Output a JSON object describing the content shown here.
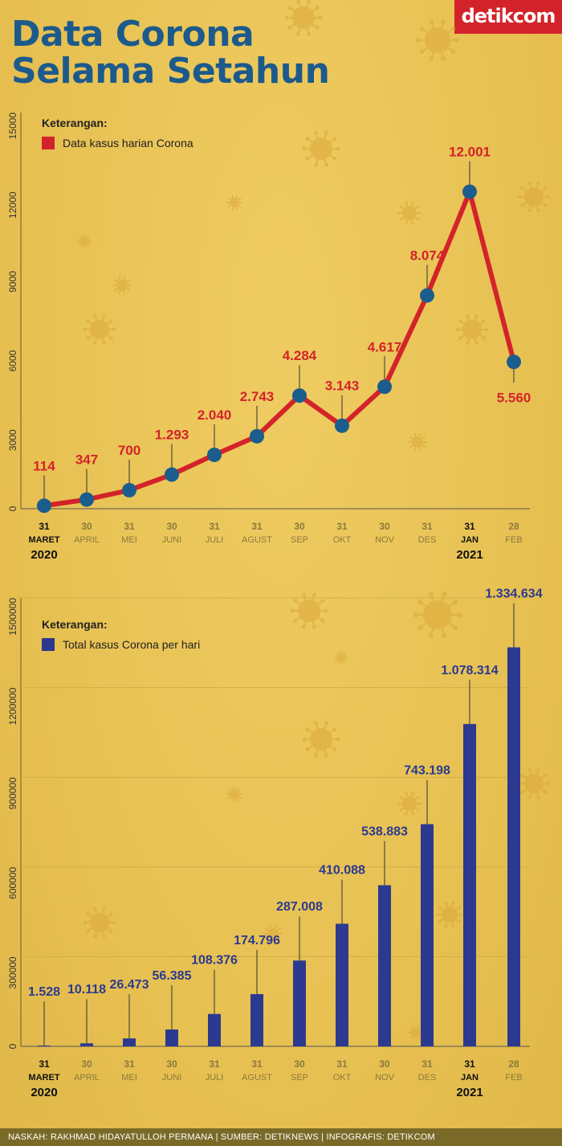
{
  "header": {
    "title_line1": "Data Corona",
    "title_line2": "Selama Setahun",
    "brand": "detikcom"
  },
  "footer": {
    "credits": "NASKAH: RAKHMAD HIDAYATULLOH PERMANA | SUMBER: DETIKNEWS | INFOGRAFIS: DETIKCOM"
  },
  "colors": {
    "title": "#1c5a8c",
    "daily_line": "#d3232a",
    "daily_marker": "#1b5d8c",
    "total_bar": "#2b3a8f",
    "brand": "#d3232a"
  },
  "chart_data": [
    {
      "type": "line",
      "legend_title": "Keterangan:",
      "legend_placement": "top-left",
      "categories": [
        {
          "day": "31",
          "month": "MARET"
        },
        {
          "day": "30",
          "month": "APRIL"
        },
        {
          "day": "31",
          "month": "MEI"
        },
        {
          "day": "30",
          "month": "JUNI"
        },
        {
          "day": "31",
          "month": "JULI"
        },
        {
          "day": "31",
          "month": "AGUST"
        },
        {
          "day": "30",
          "month": "SEP"
        },
        {
          "day": "31",
          "month": "OKT"
        },
        {
          "day": "30",
          "month": "NOV"
        },
        {
          "day": "31",
          "month": "DES"
        },
        {
          "day": "31",
          "month": "JAN"
        },
        {
          "day": "28",
          "month": "FEB"
        }
      ],
      "year_labels": [
        {
          "index": 0,
          "text": "2020"
        },
        {
          "index": 10,
          "text": "2021"
        }
      ],
      "series": [
        {
          "name": "Data kasus harian Corona",
          "values": [
            114,
            347,
            700,
            1293,
            2040,
            2743,
            4284,
            3143,
            4617,
            8074,
            12001,
            5560
          ]
        }
      ],
      "data_labels": [
        "114",
        "347",
        "700",
        "1.293",
        "2.040",
        "2.743",
        "4.284",
        "3.143",
        "4.617",
        "8.074",
        "12.001",
        "5.560"
      ],
      "ylim": [
        0,
        15000
      ],
      "yticks": [
        0,
        3000,
        6000,
        9000,
        12000,
        15000
      ],
      "ytick_labels": [
        "0",
        "3000",
        "6000",
        "9000",
        "12000",
        "15000"
      ],
      "grid": false
    },
    {
      "type": "bar",
      "legend_title": "Keterangan:",
      "legend_placement": "top-left",
      "categories": [
        {
          "day": "31",
          "month": "MARET"
        },
        {
          "day": "30",
          "month": "APRIL"
        },
        {
          "day": "31",
          "month": "MEI"
        },
        {
          "day": "30",
          "month": "JUNI"
        },
        {
          "day": "31",
          "month": "JULI"
        },
        {
          "day": "31",
          "month": "AGUST"
        },
        {
          "day": "30",
          "month": "SEP"
        },
        {
          "day": "31",
          "month": "OKT"
        },
        {
          "day": "30",
          "month": "NOV"
        },
        {
          "day": "31",
          "month": "DES"
        },
        {
          "day": "31",
          "month": "JAN"
        },
        {
          "day": "28",
          "month": "FEB"
        }
      ],
      "year_labels": [
        {
          "index": 0,
          "text": "2020"
        },
        {
          "index": 10,
          "text": "2021"
        }
      ],
      "series": [
        {
          "name": "Total kasus Corona per hari",
          "values": [
            1528,
            10118,
            26473,
            56385,
            108376,
            174796,
            287008,
            410088,
            538883,
            743198,
            1078314,
            1334634
          ]
        }
      ],
      "data_labels": [
        "1.528",
        "10.118",
        "26.473",
        "56.385",
        "108.376",
        "174.796",
        "287.008",
        "410.088",
        "538.883",
        "743.198",
        "1.078.314",
        "1.334.634"
      ],
      "ylim": [
        0,
        1500000
      ],
      "yticks": [
        0,
        300000,
        600000,
        900000,
        1200000,
        1500000
      ],
      "ytick_labels": [
        "0",
        "300000",
        "600000",
        "900000",
        "1200000",
        "1500000"
      ],
      "grid": true
    }
  ]
}
